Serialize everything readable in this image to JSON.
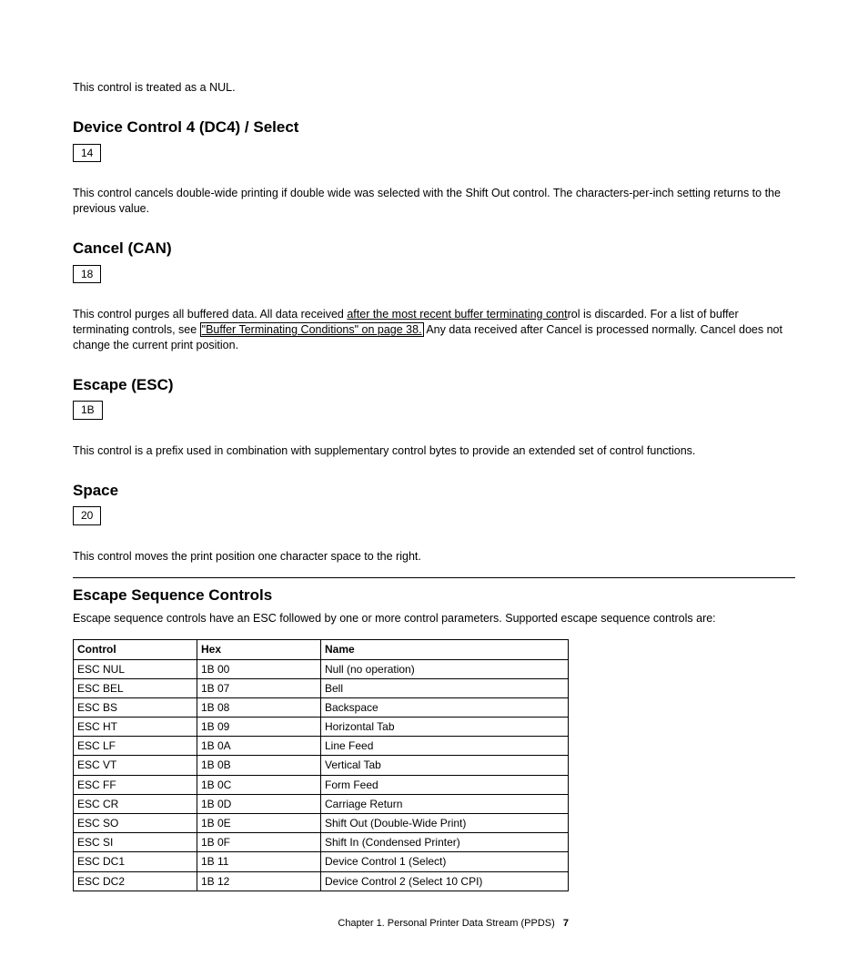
{
  "intro_nul": "This control is treated as a NUL.",
  "dc4": {
    "heading": "Device Control 4 (DC4) / Select",
    "code": "14",
    "text": "This control cancels double-wide printing if double wide was selected with the Shift Out control. The characters-per-inch setting returns to the previous value."
  },
  "can": {
    "heading": "Cancel (CAN)",
    "code": "18",
    "pre": "This control purges all buffered data. All data received ",
    "underlined1": "after the most recent buffer terminating cont",
    "post1": "rol is discarded. For a list of buffer terminating controls, see ",
    "link": "\"Buffer Terminating Conditions\" on page 38.",
    "post2": " Any data received after Cancel is processed normally. Cancel does not change the current print position."
  },
  "esc": {
    "heading": "Escape (ESC)",
    "code": "1B",
    "text": "This control is a prefix used in combination with supplementary control bytes to provide an extended set of control functions."
  },
  "space": {
    "heading": "Space",
    "code": "20",
    "text": "This control moves the print position one character space to the right."
  },
  "seq": {
    "heading": "Escape Sequence Controls",
    "intro": "Escape sequence controls have an ESC followed by one or more control parameters. Supported escape sequence controls are:",
    "columns": [
      "Control",
      "Hex",
      "Name"
    ],
    "rows": [
      [
        "ESC NUL",
        "1B 00",
        "Null (no operation)"
      ],
      [
        "ESC BEL",
        "1B 07",
        "Bell"
      ],
      [
        "ESC BS",
        "1B 08",
        "Backspace"
      ],
      [
        "ESC HT",
        "1B 09",
        "Horizontal Tab"
      ],
      [
        "ESC LF",
        "1B 0A",
        "Line Feed"
      ],
      [
        "ESC VT",
        "1B 0B",
        "Vertical Tab"
      ],
      [
        "ESC FF",
        "1B 0C",
        "Form Feed"
      ],
      [
        "ESC CR",
        "1B 0D",
        "Carriage Return"
      ],
      [
        "ESC SO",
        "1B 0E",
        "Shift Out (Double-Wide Print)"
      ],
      [
        "ESC SI",
        "1B 0F",
        "Shift In (Condensed Printer)"
      ],
      [
        "ESC DC1",
        "1B 11",
        "Device Control 1 (Select)"
      ],
      [
        "ESC DC2",
        "1B 12",
        "Device Control 2 (Select 10 CPI)"
      ]
    ]
  },
  "footer": {
    "chapter": "Chapter 1. Personal Printer Data Stream (PPDS)",
    "page": "7"
  }
}
